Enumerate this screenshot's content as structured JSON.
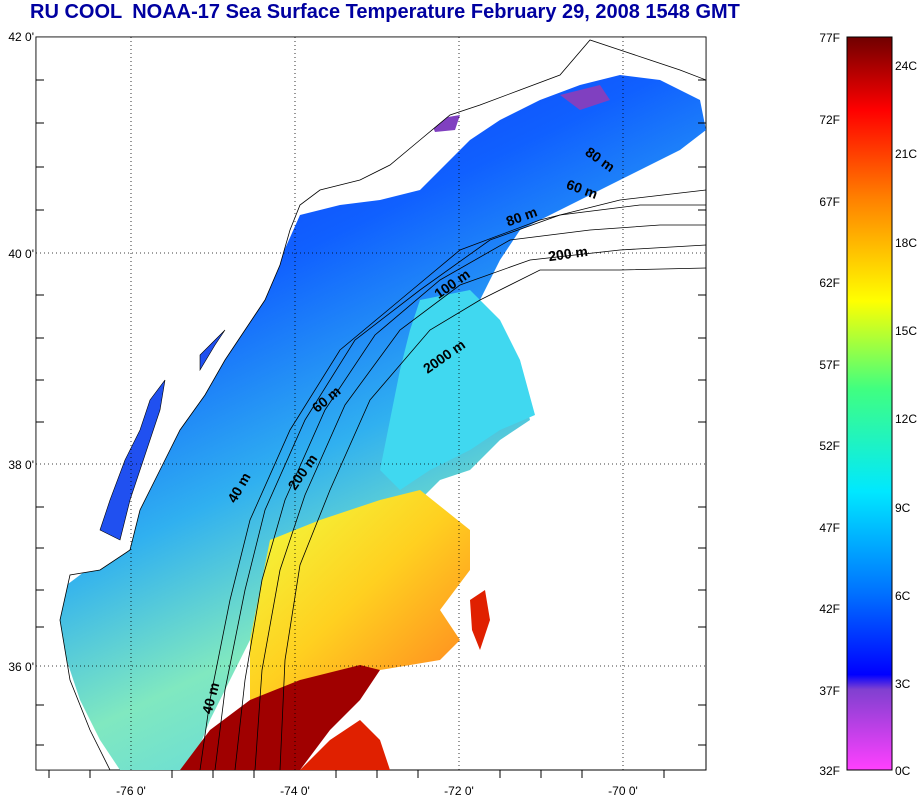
{
  "title": {
    "part1": "RU COOL",
    "part2": "NOAA-17 Sea Surface Temperature February 29, 2008 1548 GMT"
  },
  "axes": {
    "lat_labels": [
      "42 0'",
      "40 0'",
      "38 0'",
      "36 0'"
    ],
    "lon_labels": [
      "-76 0'",
      "-74 0'",
      "-72 0'",
      "-70 0'"
    ]
  },
  "contour_labels": [
    "80 m",
    "60 m",
    "80 m",
    "200 m",
    "100 m",
    "2000 m",
    "60 m",
    "200 m",
    "40 m",
    "40 m"
  ],
  "colorbar": {
    "fahrenheit": [
      "77F",
      "72F",
      "67F",
      "62F",
      "57F",
      "52F",
      "47F",
      "42F",
      "37F",
      "32F"
    ],
    "celsius": [
      "24C",
      "21C",
      "18C",
      "15C",
      "12C",
      "9C",
      "6C",
      "3C",
      "0C"
    ],
    "stops": [
      "#ff40ff",
      "#8040d0",
      "#0000ff",
      "#0070ff",
      "#00e8ff",
      "#40ff80",
      "#ffff00",
      "#ff8000",
      "#ff0000",
      "#700000"
    ]
  }
}
